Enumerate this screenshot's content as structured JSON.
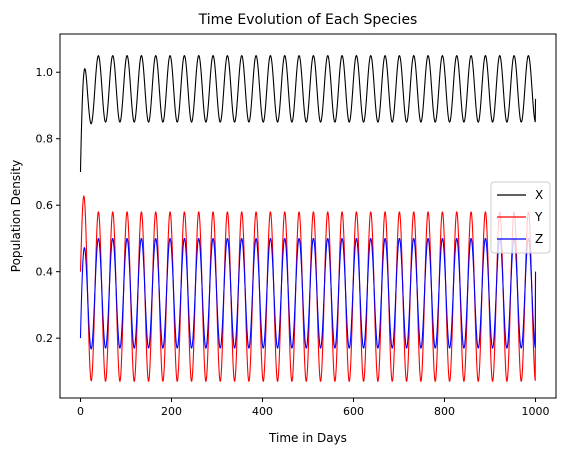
{
  "chart_data": {
    "type": "line",
    "title": "Time Evolution of Each Species",
    "xlabel": "Time in Days",
    "ylabel": "Population Density",
    "xlim": [
      -45,
      1045
    ],
    "ylim": [
      0.02,
      1.115
    ],
    "xticks": [
      0,
      200,
      400,
      600,
      800,
      1000
    ],
    "xtick_labels": [
      "0",
      "200",
      "400",
      "600",
      "800",
      "1000"
    ],
    "yticks": [
      0.2,
      0.4,
      0.6,
      0.8,
      1.0
    ],
    "ytick_labels": [
      "0.2",
      "0.4",
      "0.6",
      "0.8",
      "1.0"
    ],
    "grid": false,
    "legend_position": "right",
    "series": [
      {
        "name": "X",
        "color": "#000000",
        "initial": 0.7,
        "transient_peak": 1.08,
        "peak_max": 1.05,
        "trough_min": 0.85,
        "period_days": 31.5,
        "end_value": 0.92
      },
      {
        "name": "Y",
        "color": "#ff0000",
        "initial": 0.4,
        "transient_peak": 0.62,
        "peak_max": 0.58,
        "trough_min": 0.07,
        "period_days": 31.5,
        "end_value": 0.39
      },
      {
        "name": "Z",
        "color": "#0000ff",
        "initial": 0.2,
        "transient_peak": 0.51,
        "peak_max": 0.5,
        "trough_min": 0.17,
        "period_days": 31.5,
        "end_value": 0.4
      }
    ],
    "x_start": 0,
    "x_end": 1000
  }
}
